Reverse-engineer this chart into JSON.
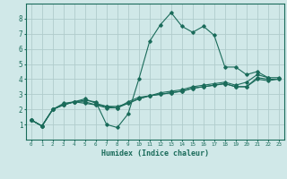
{
  "background_color": "#d0e8e8",
  "grid_color": "#b0cccc",
  "line_color": "#1a6b5a",
  "xlabel": "Humidex (Indice chaleur)",
  "xlim": [
    -0.5,
    23.5
  ],
  "ylim": [
    0,
    9
  ],
  "xticks": [
    0,
    1,
    2,
    3,
    4,
    5,
    6,
    7,
    8,
    9,
    10,
    11,
    12,
    13,
    14,
    15,
    16,
    17,
    18,
    19,
    20,
    21,
    22,
    23
  ],
  "yticks": [
    1,
    2,
    3,
    4,
    5,
    6,
    7,
    8
  ],
  "series1_x": [
    0,
    1,
    2,
    3,
    4,
    5,
    6,
    7,
    8,
    9,
    10,
    11,
    12,
    13,
    14,
    15,
    16,
    17,
    18,
    19,
    20,
    21,
    22
  ],
  "series1_y": [
    1.3,
    0.9,
    2.0,
    2.4,
    2.5,
    2.6,
    2.5,
    1.0,
    0.8,
    1.7,
    4.0,
    6.5,
    7.6,
    8.4,
    7.5,
    7.1,
    7.5,
    6.9,
    4.8,
    4.8,
    4.3,
    4.5,
    4.1
  ],
  "series2_x": [
    0,
    1,
    2,
    3,
    4,
    5,
    6,
    7,
    8,
    9,
    10,
    11,
    12,
    13,
    14,
    15,
    16,
    17,
    18,
    19,
    20,
    21,
    22,
    23
  ],
  "series2_y": [
    1.3,
    0.9,
    2.0,
    2.3,
    2.5,
    2.7,
    2.4,
    2.2,
    2.1,
    2.5,
    2.8,
    2.9,
    3.1,
    3.2,
    3.3,
    3.5,
    3.6,
    3.7,
    3.8,
    3.6,
    3.8,
    4.3,
    4.1,
    4.1
  ],
  "series3_x": [
    0,
    1,
    2,
    3,
    4,
    5,
    6,
    7,
    8,
    9,
    10,
    11,
    12,
    13,
    14,
    15,
    16,
    17,
    18,
    19,
    20,
    21,
    22,
    23
  ],
  "series3_y": [
    1.3,
    0.9,
    2.0,
    2.3,
    2.5,
    2.4,
    2.3,
    2.2,
    2.2,
    2.4,
    2.7,
    2.9,
    3.0,
    3.1,
    3.2,
    3.4,
    3.5,
    3.6,
    3.7,
    3.5,
    3.5,
    4.1,
    4.0,
    4.0
  ],
  "series4_x": [
    0,
    1,
    2,
    3,
    4,
    5,
    6,
    7,
    8,
    9,
    10,
    11,
    12,
    13,
    14,
    15,
    16,
    17,
    18,
    19,
    20,
    21,
    22,
    23
  ],
  "series4_y": [
    1.3,
    0.9,
    2.0,
    2.3,
    2.5,
    2.5,
    2.3,
    2.1,
    2.1,
    2.4,
    2.7,
    2.9,
    3.0,
    3.1,
    3.2,
    3.4,
    3.5,
    3.6,
    3.7,
    3.5,
    3.5,
    4.0,
    3.9,
    4.0
  ]
}
